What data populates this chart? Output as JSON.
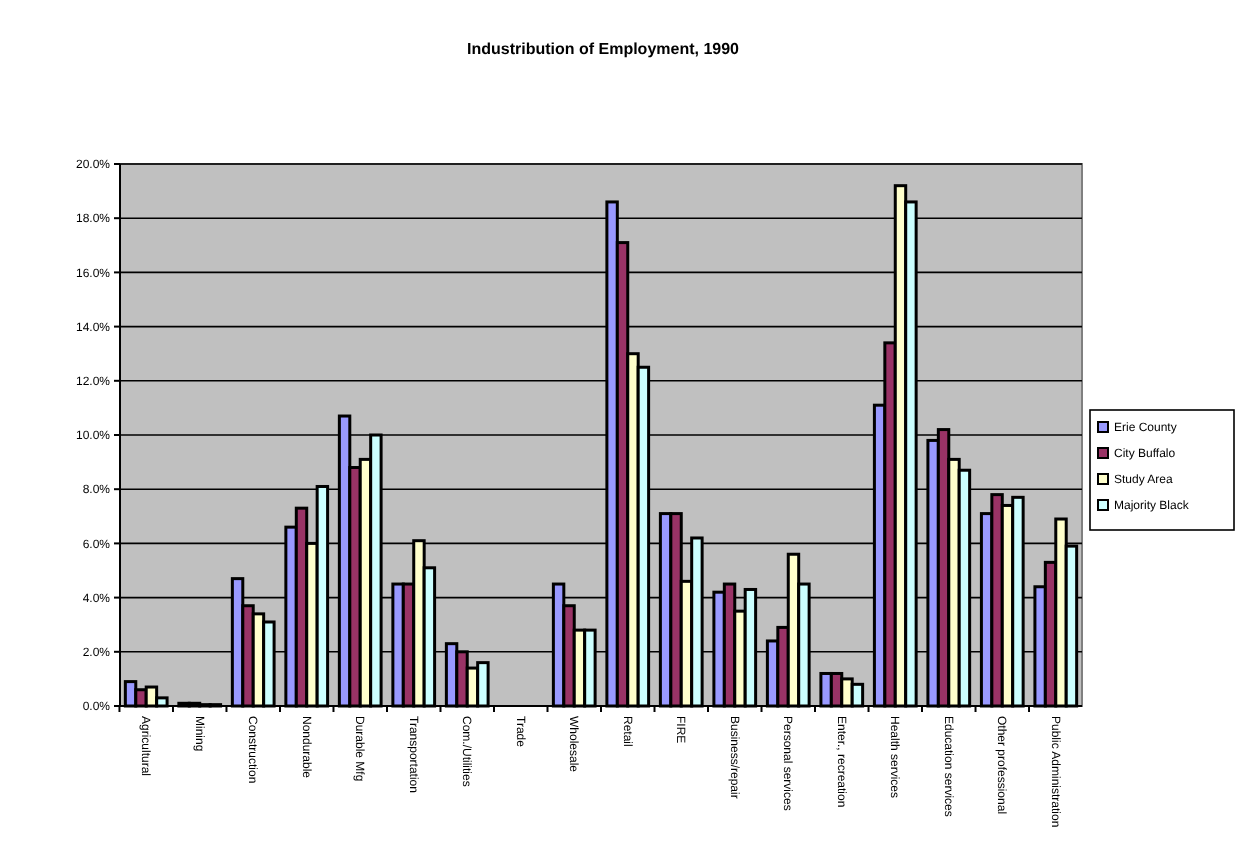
{
  "chart_data": {
    "type": "bar",
    "title": "Industribution of Employment, 1990",
    "categories": [
      "Agricultural",
      "Mining",
      "Construction",
      "Nondurable",
      "Durable Mfg",
      "Transportation",
      "Com./Utilities",
      "Trade",
      "Wholesale",
      "Retail",
      "FIRE",
      "Business/repair",
      "Personal services",
      "Enter., recreation",
      "Health services",
      "Education services",
      "Other professional",
      "Public Administration"
    ],
    "series": [
      {
        "name": "Erie County",
        "color": "#9999ff",
        "values": [
          0.9,
          0.1,
          4.7,
          6.6,
          10.7,
          4.5,
          2.3,
          null,
          4.5,
          18.6,
          7.1,
          4.2,
          2.4,
          1.2,
          11.1,
          9.8,
          7.1,
          4.4
        ]
      },
      {
        "name": "City Buffalo",
        "color": "#993366",
        "values": [
          0.6,
          0.1,
          3.7,
          7.3,
          8.8,
          4.5,
          2.0,
          null,
          3.7,
          17.1,
          7.1,
          4.5,
          2.9,
          1.2,
          13.4,
          10.2,
          7.8,
          5.3
        ]
      },
      {
        "name": "Study Area",
        "color": "#ffffcc",
        "values": [
          0.7,
          0.05,
          3.4,
          6.0,
          9.1,
          6.1,
          1.4,
          null,
          2.8,
          13.0,
          4.6,
          3.5,
          5.6,
          1.0,
          19.2,
          9.1,
          7.4,
          6.9
        ]
      },
      {
        "name": "Majority Black",
        "color": "#ccffff",
        "values": [
          0.3,
          0.05,
          3.1,
          8.1,
          10.0,
          5.1,
          1.6,
          null,
          2.8,
          12.5,
          6.2,
          4.3,
          4.5,
          0.8,
          18.6,
          8.7,
          7.7,
          5.9
        ]
      }
    ],
    "ylim": [
      0,
      20
    ],
    "yticks": [
      {
        "value": 0,
        "label": "0.0%"
      },
      {
        "value": 2,
        "label": "2.0%"
      },
      {
        "value": 4,
        "label": "4.0%"
      },
      {
        "value": 6,
        "label": "6.0%"
      },
      {
        "value": 8,
        "label": "8.0%"
      },
      {
        "value": 10,
        "label": "10.0%"
      },
      {
        "value": 12,
        "label": "12.0%"
      },
      {
        "value": 14,
        "label": "14.0%"
      },
      {
        "value": 16,
        "label": "16.0%"
      },
      {
        "value": 18,
        "label": "18.0%"
      },
      {
        "value": 20,
        "label": "20.0%"
      }
    ],
    "grid": "y",
    "legend": "right"
  }
}
